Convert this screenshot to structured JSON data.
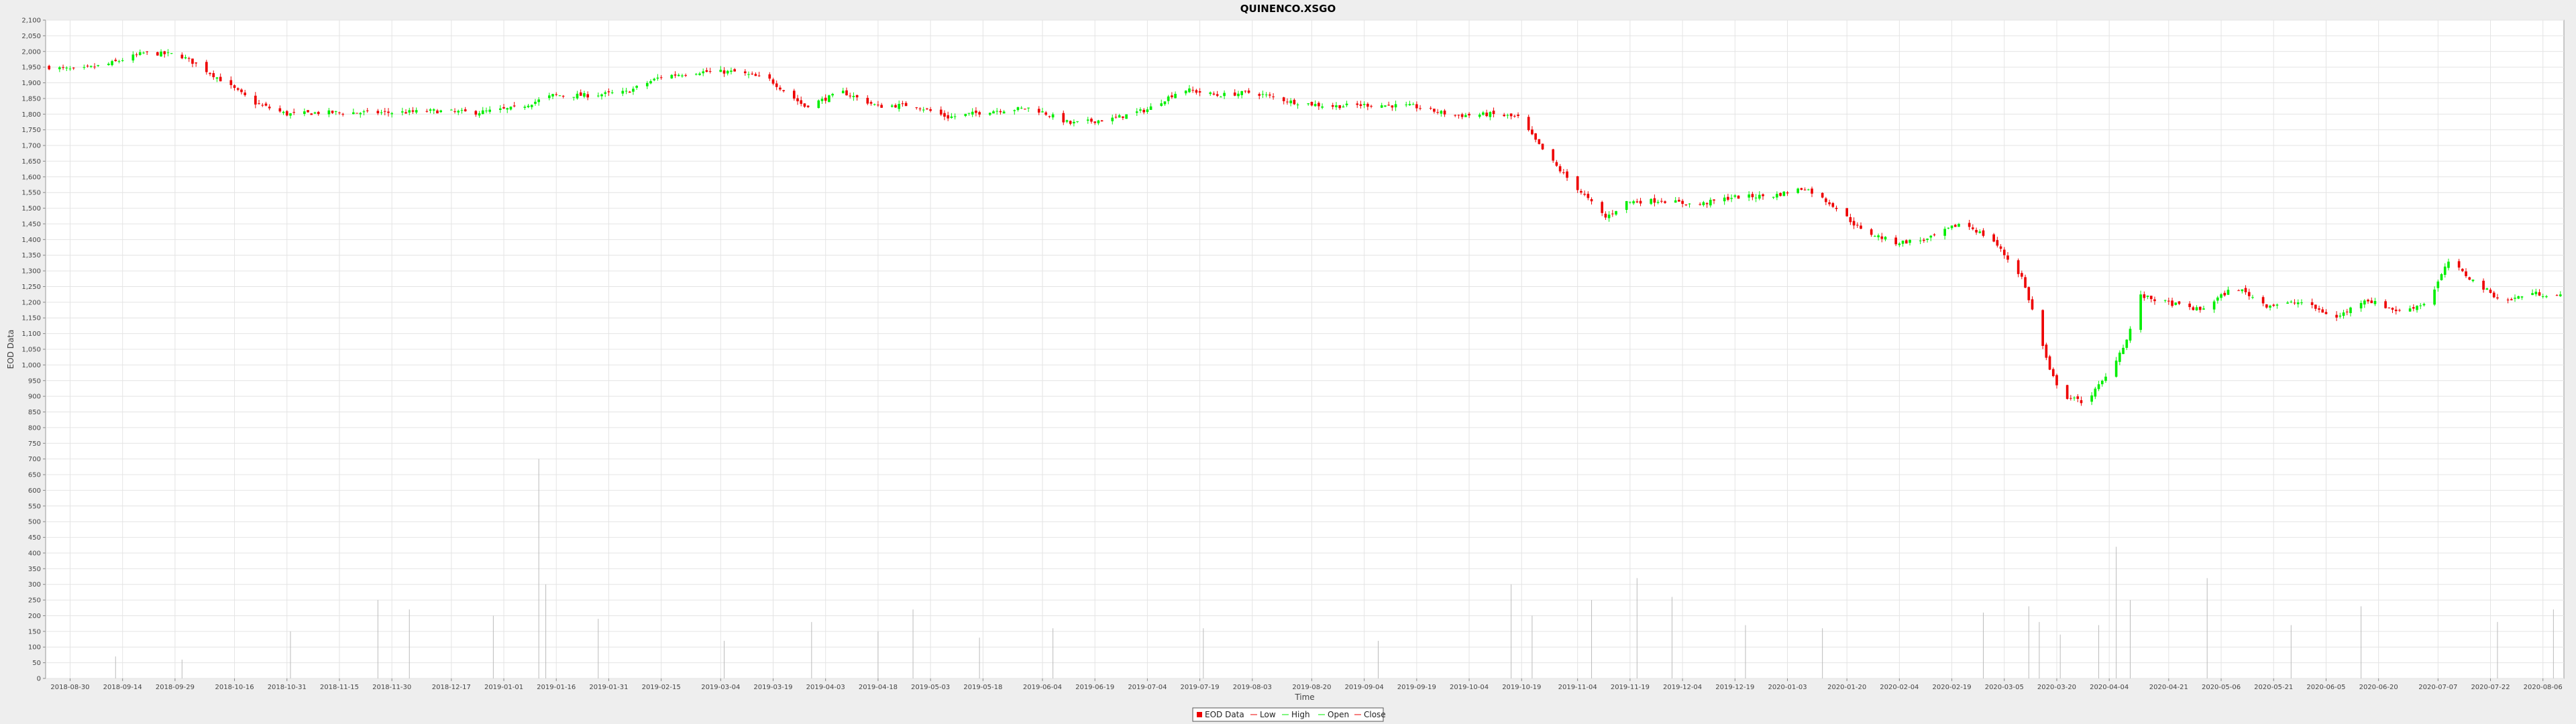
{
  "chart_data": {
    "type": "candlestick",
    "title": "QUINENCO.XSGO",
    "xlabel": "Time",
    "ylabel": "EOD Data",
    "ylim": [
      0,
      2100
    ],
    "yticks": [
      0,
      50,
      100,
      150,
      200,
      250,
      300,
      350,
      400,
      450,
      500,
      550,
      600,
      650,
      700,
      750,
      800,
      850,
      900,
      950,
      1000,
      1050,
      1100,
      1150,
      1200,
      1250,
      1300,
      1350,
      1400,
      1450,
      1500,
      1550,
      1600,
      1650,
      1700,
      1750,
      1800,
      1850,
      1900,
      1950,
      2000,
      2050,
      2100
    ],
    "xrange": [
      "2018-08-23",
      "2020-08-12"
    ],
    "xticks": [
      "2018-08-30",
      "2018-09-14",
      "2018-09-29",
      "2018-10-16",
      "2018-10-31",
      "2018-11-15",
      "2018-11-30",
      "2018-12-17",
      "2019-01-01",
      "2019-01-16",
      "2019-01-31",
      "2019-02-15",
      "2019-03-04",
      "2019-03-19",
      "2019-04-03",
      "2019-04-18",
      "2019-05-03",
      "2019-05-18",
      "2019-06-04",
      "2019-06-19",
      "2019-07-04",
      "2019-07-19",
      "2019-08-03",
      "2019-08-20",
      "2019-09-04",
      "2019-09-19",
      "2019-10-04",
      "2019-10-19",
      "2019-11-04",
      "2019-11-19",
      "2019-12-04",
      "2019-12-19",
      "2020-01-03",
      "2020-01-20",
      "2020-02-04",
      "2020-02-19",
      "2020-03-05",
      "2020-03-20",
      "2020-04-04",
      "2020-04-21",
      "2020-05-06",
      "2020-05-21",
      "2020-06-05",
      "2020-06-20",
      "2020-07-07",
      "2020-07-22",
      "2020-08-06"
    ],
    "grid": true,
    "legend_position": "bottom-center",
    "legend": [
      "EOD Data",
      "Low",
      "High",
      "Open",
      "Close"
    ],
    "colors": {
      "up": "#00ee00",
      "down": "#ee0000",
      "volume": "#bbbbbb"
    },
    "series": [
      {
        "name": "Close",
        "values": [
          [
            "2018-08-24",
            1950
          ],
          [
            "2018-09-01",
            1940
          ],
          [
            "2018-09-10",
            1960
          ],
          [
            "2018-09-20",
            1995
          ],
          [
            "2018-09-30",
            1990
          ],
          [
            "2018-10-05",
            1960
          ],
          [
            "2018-10-12",
            1910
          ],
          [
            "2018-10-22",
            1835
          ],
          [
            "2018-10-31",
            1800
          ],
          [
            "2018-11-10",
            1805
          ],
          [
            "2018-11-20",
            1805
          ],
          [
            "2018-12-01",
            1805
          ],
          [
            "2018-12-12",
            1810
          ],
          [
            "2018-12-24",
            1805
          ],
          [
            "2019-01-05",
            1820
          ],
          [
            "2019-01-15",
            1860
          ],
          [
            "2019-01-25",
            1860
          ],
          [
            "2019-02-05",
            1870
          ],
          [
            "2019-02-15",
            1920
          ],
          [
            "2019-02-26",
            1935
          ],
          [
            "2019-03-08",
            1935
          ],
          [
            "2019-03-18",
            1910
          ],
          [
            "2019-03-28",
            1825
          ],
          [
            "2019-04-08",
            1870
          ],
          [
            "2019-04-18",
            1825
          ],
          [
            "2019-04-28",
            1830
          ],
          [
            "2019-05-08",
            1790
          ],
          [
            "2019-05-20",
            1810
          ],
          [
            "2019-06-01",
            1820
          ],
          [
            "2019-06-12",
            1770
          ],
          [
            "2019-06-24",
            1785
          ],
          [
            "2019-07-04",
            1815
          ],
          [
            "2019-07-14",
            1880
          ],
          [
            "2019-07-24",
            1860
          ],
          [
            "2019-08-03",
            1870
          ],
          [
            "2019-08-14",
            1840
          ],
          [
            "2019-08-25",
            1825
          ],
          [
            "2019-09-06",
            1830
          ],
          [
            "2019-09-18",
            1825
          ],
          [
            "2019-09-30",
            1795
          ],
          [
            "2019-10-10",
            1800
          ],
          [
            "2019-10-18",
            1790
          ],
          [
            "2019-10-24",
            1700
          ],
          [
            "2019-10-30",
            1620
          ],
          [
            "2019-11-06",
            1540
          ],
          [
            "2019-11-12",
            1470
          ],
          [
            "2019-11-18",
            1520
          ],
          [
            "2019-11-28",
            1525
          ],
          [
            "2019-12-08",
            1510
          ],
          [
            "2019-12-18",
            1535
          ],
          [
            "2019-12-30",
            1540
          ],
          [
            "2020-01-08",
            1565
          ],
          [
            "2020-01-16",
            1510
          ],
          [
            "2020-01-24",
            1430
          ],
          [
            "2020-02-03",
            1390
          ],
          [
            "2020-02-12",
            1400
          ],
          [
            "2020-02-22",
            1455
          ],
          [
            "2020-03-02",
            1395
          ],
          [
            "2020-03-10",
            1280
          ],
          [
            "2020-03-14",
            1140
          ],
          [
            "2020-03-18",
            980
          ],
          [
            "2020-03-22",
            900
          ],
          [
            "2020-03-28",
            880
          ],
          [
            "2020-04-03",
            960
          ],
          [
            "2020-04-09",
            1080
          ],
          [
            "2020-04-13",
            1220
          ],
          [
            "2020-04-20",
            1200
          ],
          [
            "2020-04-30",
            1175
          ],
          [
            "2020-05-10",
            1250
          ],
          [
            "2020-05-19",
            1190
          ],
          [
            "2020-05-29",
            1200
          ],
          [
            "2020-06-08",
            1150
          ],
          [
            "2020-06-16",
            1210
          ],
          [
            "2020-06-26",
            1170
          ],
          [
            "2020-07-04",
            1200
          ],
          [
            "2020-07-10",
            1330
          ],
          [
            "2020-07-18",
            1260
          ],
          [
            "2020-07-26",
            1200
          ],
          [
            "2020-08-02",
            1230
          ],
          [
            "2020-08-11",
            1220
          ]
        ]
      },
      {
        "name": "EOD Data",
        "volume": [
          [
            "2018-09-12",
            70
          ],
          [
            "2018-10-01",
            60
          ],
          [
            "2018-11-01",
            150
          ],
          [
            "2018-11-26",
            250
          ],
          [
            "2018-12-05",
            220
          ],
          [
            "2018-12-29",
            200
          ],
          [
            "2019-01-11",
            700
          ],
          [
            "2019-01-13",
            300
          ],
          [
            "2019-01-28",
            190
          ],
          [
            "2019-03-05",
            120
          ],
          [
            "2019-03-30",
            180
          ],
          [
            "2019-04-18",
            150
          ],
          [
            "2019-04-28",
            220
          ],
          [
            "2019-05-17",
            130
          ],
          [
            "2019-06-07",
            160
          ],
          [
            "2019-07-20",
            160
          ],
          [
            "2019-09-08",
            120
          ],
          [
            "2019-10-16",
            300
          ],
          [
            "2019-10-22",
            200
          ],
          [
            "2019-11-08",
            250
          ],
          [
            "2019-11-21",
            320
          ],
          [
            "2019-12-01",
            260
          ],
          [
            "2019-12-22",
            170
          ],
          [
            "2020-01-13",
            160
          ],
          [
            "2020-02-28",
            210
          ],
          [
            "2020-03-12",
            230
          ],
          [
            "2020-03-15",
            180
          ],
          [
            "2020-03-21",
            140
          ],
          [
            "2020-04-01",
            170
          ],
          [
            "2020-04-06",
            420
          ],
          [
            "2020-04-10",
            250
          ],
          [
            "2020-05-02",
            320
          ],
          [
            "2020-05-26",
            170
          ],
          [
            "2020-06-15",
            230
          ],
          [
            "2020-07-24",
            180
          ],
          [
            "2020-08-09",
            220
          ]
        ]
      }
    ]
  }
}
